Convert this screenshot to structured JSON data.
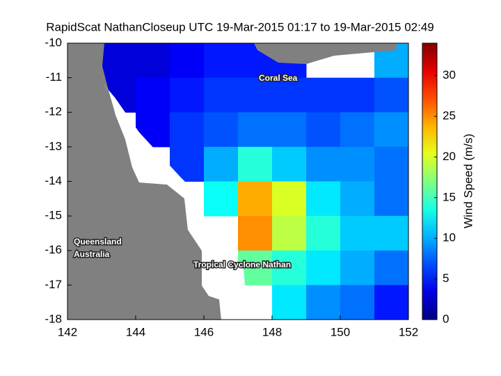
{
  "chart_data": {
    "type": "heatmap",
    "title": "RapidScat NathanCloseup UTC 19-Mar-2015 01:17 to 19-Mar-2015 02:49",
    "xbins": [
      142,
      143,
      144,
      145,
      146,
      147,
      148,
      149,
      150,
      151,
      152
    ],
    "ybins": [
      -10,
      -11,
      -12,
      -13,
      -14,
      -15,
      -16,
      -17,
      -18
    ],
    "values": [
      [
        null,
        3,
        3,
        4,
        5,
        5,
        5,
        null,
        null,
        10
      ],
      [
        null,
        3,
        4,
        5,
        6,
        6,
        6,
        6,
        6,
        7
      ],
      [
        null,
        null,
        4,
        6,
        7,
        8,
        8,
        7,
        8,
        9
      ],
      [
        null,
        null,
        null,
        6,
        10,
        14,
        11,
        9,
        9,
        8
      ],
      [
        null,
        null,
        null,
        null,
        13,
        24,
        20,
        12,
        10,
        8
      ],
      [
        null,
        null,
        null,
        null,
        null,
        25,
        19,
        14,
        11,
        11
      ],
      [
        null,
        null,
        null,
        null,
        null,
        16,
        14,
        12,
        10,
        8
      ],
      [
        null,
        null,
        null,
        null,
        null,
        null,
        12,
        9,
        8,
        5
      ]
    ],
    "xlim": [
      142,
      152
    ],
    "ylim": [
      -18,
      -10
    ],
    "xticks": [
      142,
      144,
      146,
      148,
      150,
      152
    ],
    "yticks": [
      -10,
      -11,
      -12,
      -13,
      -14,
      -15,
      -16,
      -17,
      -18
    ],
    "clim": [
      0,
      34
    ],
    "cticks": [
      0,
      5,
      10,
      15,
      20,
      25,
      30
    ],
    "colorbar_label": "Wind Speed (m/s)",
    "annotations": [
      "Coral Sea",
      "Queensland",
      "Australia",
      "Tropical Cyclone Nathan"
    ]
  }
}
